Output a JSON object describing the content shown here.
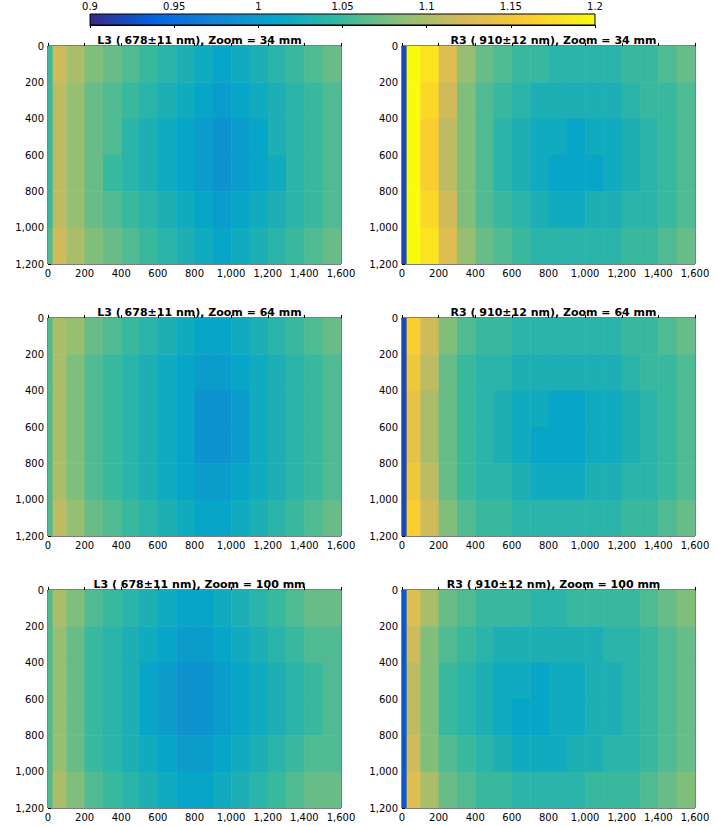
{
  "colorbar": {
    "range": [
      0.9,
      1.2
    ],
    "ticks": [
      0.9,
      0.95,
      1,
      1.05,
      1.1,
      1.15,
      1.2
    ]
  },
  "chart_data": [
    {
      "type": "heatmap",
      "title": "L3 ( 678±11 nm), Zoom = 34 mm",
      "xlim": [
        0,
        1600
      ],
      "xticks": [
        0,
        200,
        400,
        600,
        800,
        1000,
        1200,
        1400,
        1600
      ],
      "ylim": [
        0,
        1200
      ],
      "yticks": [
        0,
        200,
        400,
        600,
        800,
        1000,
        1200
      ],
      "x_edges": [
        0,
        25,
        100,
        200,
        300,
        400,
        500,
        600,
        700,
        800,
        900,
        1000,
        1100,
        1200,
        1300,
        1400,
        1500,
        1600
      ],
      "y_edges": [
        0,
        200,
        400,
        600,
        800,
        1000,
        1200
      ],
      "cells": [
        [
          1.05,
          1.12,
          1.1,
          1.08,
          1.07,
          1.06,
          1.05,
          1.04,
          1.03,
          1.02,
          1.01,
          1.02,
          1.03,
          1.04,
          1.05,
          1.06,
          1.07
        ],
        [
          1.05,
          1.11,
          1.09,
          1.07,
          1.06,
          1.05,
          1.04,
          1.03,
          1.02,
          1.01,
          1.0,
          1.01,
          1.02,
          1.03,
          1.04,
          1.05,
          1.06
        ],
        [
          1.05,
          1.11,
          1.09,
          1.07,
          1.06,
          1.04,
          1.03,
          1.02,
          1.01,
          1.0,
          0.99,
          1.0,
          1.01,
          1.03,
          1.04,
          1.05,
          1.06
        ],
        [
          1.05,
          1.11,
          1.09,
          1.07,
          1.05,
          1.04,
          1.03,
          1.02,
          1.01,
          1.0,
          0.99,
          1.0,
          1.01,
          1.02,
          1.04,
          1.05,
          1.06
        ],
        [
          1.05,
          1.11,
          1.09,
          1.07,
          1.06,
          1.05,
          1.04,
          1.03,
          1.02,
          1.01,
          1.0,
          1.01,
          1.02,
          1.03,
          1.04,
          1.05,
          1.06
        ],
        [
          1.06,
          1.12,
          1.1,
          1.08,
          1.07,
          1.06,
          1.05,
          1.04,
          1.03,
          1.02,
          1.01,
          1.02,
          1.03,
          1.04,
          1.05,
          1.06,
          1.07
        ]
      ]
    },
    {
      "type": "heatmap",
      "title": "R3 ( 910±12 nm), Zoom = 34 mm",
      "xlim": [
        0,
        1600
      ],
      "xticks": [
        0,
        200,
        400,
        600,
        800,
        1000,
        1200,
        1400,
        1600
      ],
      "ylim": [
        0,
        1200
      ],
      "yticks": [
        0,
        200,
        400,
        600,
        800,
        1000,
        1200
      ],
      "x_edges": [
        0,
        25,
        100,
        200,
        300,
        400,
        500,
        600,
        700,
        800,
        900,
        1000,
        1100,
        1200,
        1300,
        1400,
        1500,
        1600
      ],
      "y_edges": [
        0,
        200,
        400,
        600,
        800,
        1000,
        1200
      ],
      "cells": [
        [
          0.92,
          1.2,
          1.18,
          1.13,
          1.09,
          1.07,
          1.06,
          1.05,
          1.05,
          1.04,
          1.04,
          1.04,
          1.04,
          1.05,
          1.05,
          1.06,
          1.07
        ],
        [
          0.92,
          1.2,
          1.17,
          1.12,
          1.08,
          1.06,
          1.05,
          1.04,
          1.03,
          1.03,
          1.03,
          1.03,
          1.03,
          1.04,
          1.05,
          1.05,
          1.06
        ],
        [
          0.92,
          1.2,
          1.16,
          1.11,
          1.08,
          1.06,
          1.04,
          1.03,
          1.02,
          1.02,
          1.01,
          1.02,
          1.02,
          1.03,
          1.04,
          1.05,
          1.06
        ],
        [
          0.92,
          1.2,
          1.16,
          1.11,
          1.08,
          1.06,
          1.04,
          1.03,
          1.02,
          1.01,
          1.01,
          1.01,
          1.02,
          1.03,
          1.04,
          1.05,
          1.06
        ],
        [
          0.92,
          1.2,
          1.17,
          1.12,
          1.08,
          1.06,
          1.05,
          1.04,
          1.03,
          1.02,
          1.02,
          1.03,
          1.03,
          1.04,
          1.04,
          1.05,
          1.06
        ],
        [
          0.92,
          1.2,
          1.18,
          1.13,
          1.09,
          1.07,
          1.06,
          1.05,
          1.04,
          1.04,
          1.04,
          1.04,
          1.04,
          1.05,
          1.05,
          1.06,
          1.07
        ]
      ]
    },
    {
      "type": "heatmap",
      "title": "L3 ( 678±11 nm), Zoom = 64 mm",
      "xlim": [
        0,
        1600
      ],
      "xticks": [
        0,
        200,
        400,
        600,
        800,
        1000,
        1200,
        1400,
        1600
      ],
      "ylim": [
        0,
        1200
      ],
      "yticks": [
        0,
        200,
        400,
        600,
        800,
        1000,
        1200
      ],
      "x_edges": [
        0,
        25,
        100,
        200,
        300,
        400,
        500,
        600,
        700,
        800,
        900,
        1000,
        1100,
        1200,
        1300,
        1400,
        1500,
        1600
      ],
      "y_edges": [
        0,
        200,
        400,
        600,
        800,
        1000,
        1200
      ],
      "cells": [
        [
          1.06,
          1.1,
          1.09,
          1.07,
          1.06,
          1.05,
          1.04,
          1.03,
          1.02,
          1.01,
          1.01,
          1.02,
          1.03,
          1.04,
          1.05,
          1.06,
          1.07
        ],
        [
          1.06,
          1.1,
          1.08,
          1.06,
          1.05,
          1.04,
          1.03,
          1.02,
          1.01,
          1.0,
          1.0,
          1.01,
          1.02,
          1.03,
          1.04,
          1.05,
          1.06
        ],
        [
          1.06,
          1.1,
          1.08,
          1.06,
          1.05,
          1.04,
          1.03,
          1.02,
          1.01,
          0.99,
          0.99,
          1.0,
          1.02,
          1.03,
          1.04,
          1.05,
          1.06
        ],
        [
          1.06,
          1.1,
          1.08,
          1.06,
          1.05,
          1.04,
          1.03,
          1.02,
          1.01,
          0.99,
          0.99,
          1.0,
          1.02,
          1.03,
          1.04,
          1.05,
          1.06
        ],
        [
          1.06,
          1.1,
          1.08,
          1.06,
          1.05,
          1.04,
          1.03,
          1.02,
          1.01,
          1.0,
          1.0,
          1.01,
          1.02,
          1.03,
          1.04,
          1.05,
          1.06
        ],
        [
          1.06,
          1.11,
          1.09,
          1.07,
          1.06,
          1.05,
          1.04,
          1.03,
          1.02,
          1.01,
          1.01,
          1.02,
          1.03,
          1.04,
          1.05,
          1.06,
          1.07
        ]
      ]
    },
    {
      "type": "heatmap",
      "title": "R3 ( 910±12 nm), Zoom = 64 mm",
      "xlim": [
        0,
        1600
      ],
      "xticks": [
        0,
        200,
        400,
        600,
        800,
        1000,
        1200,
        1400,
        1600
      ],
      "ylim": [
        0,
        1200
      ],
      "yticks": [
        0,
        200,
        400,
        600,
        800,
        1000,
        1200
      ],
      "x_edges": [
        0,
        25,
        100,
        200,
        300,
        400,
        500,
        600,
        700,
        800,
        900,
        1000,
        1100,
        1200,
        1300,
        1400,
        1500,
        1600
      ],
      "y_edges": [
        0,
        200,
        400,
        600,
        800,
        1000,
        1200
      ],
      "cells": [
        [
          0.92,
          1.16,
          1.12,
          1.08,
          1.06,
          1.05,
          1.05,
          1.04,
          1.04,
          1.04,
          1.04,
          1.04,
          1.04,
          1.05,
          1.05,
          1.06,
          1.07
        ],
        [
          0.92,
          1.15,
          1.11,
          1.07,
          1.05,
          1.04,
          1.04,
          1.03,
          1.03,
          1.03,
          1.03,
          1.03,
          1.03,
          1.04,
          1.05,
          1.05,
          1.06
        ],
        [
          0.92,
          1.14,
          1.1,
          1.07,
          1.05,
          1.04,
          1.03,
          1.02,
          1.02,
          1.01,
          1.01,
          1.02,
          1.02,
          1.03,
          1.04,
          1.05,
          1.06
        ],
        [
          0.92,
          1.14,
          1.1,
          1.07,
          1.05,
          1.04,
          1.03,
          1.02,
          1.01,
          1.01,
          1.01,
          1.02,
          1.02,
          1.03,
          1.04,
          1.05,
          1.06
        ],
        [
          0.92,
          1.15,
          1.11,
          1.07,
          1.05,
          1.04,
          1.04,
          1.03,
          1.02,
          1.02,
          1.02,
          1.03,
          1.03,
          1.04,
          1.04,
          1.05,
          1.06
        ],
        [
          0.92,
          1.16,
          1.12,
          1.08,
          1.06,
          1.05,
          1.05,
          1.04,
          1.04,
          1.04,
          1.04,
          1.04,
          1.04,
          1.05,
          1.05,
          1.06,
          1.07
        ]
      ]
    },
    {
      "type": "heatmap",
      "title": "L3 ( 678±11 nm), Zoom = 100 mm",
      "xlim": [
        0,
        1600
      ],
      "xticks": [
        0,
        200,
        400,
        600,
        800,
        1000,
        1200,
        1400,
        1600
      ],
      "ylim": [
        0,
        1200
      ],
      "yticks": [
        0,
        200,
        400,
        600,
        800,
        1000,
        1200
      ],
      "x_edges": [
        0,
        25,
        100,
        200,
        300,
        400,
        500,
        600,
        700,
        800,
        900,
        1000,
        1100,
        1200,
        1300,
        1400,
        1500,
        1600
      ],
      "y_edges": [
        0,
        200,
        400,
        600,
        800,
        1000,
        1200
      ],
      "cells": [
        [
          1.06,
          1.1,
          1.08,
          1.06,
          1.05,
          1.04,
          1.03,
          1.02,
          1.01,
          1.01,
          1.02,
          1.03,
          1.04,
          1.05,
          1.06,
          1.07,
          1.07
        ],
        [
          1.06,
          1.09,
          1.07,
          1.05,
          1.04,
          1.03,
          1.02,
          1.01,
          1.0,
          1.0,
          1.01,
          1.02,
          1.03,
          1.04,
          1.05,
          1.06,
          1.06
        ],
        [
          1.06,
          1.09,
          1.07,
          1.05,
          1.04,
          1.03,
          1.01,
          1.0,
          0.99,
          0.99,
          1.0,
          1.01,
          1.02,
          1.03,
          1.04,
          1.05,
          1.06
        ],
        [
          1.06,
          1.09,
          1.07,
          1.05,
          1.04,
          1.03,
          1.01,
          1.0,
          0.99,
          0.99,
          1.0,
          1.01,
          1.02,
          1.03,
          1.04,
          1.05,
          1.06
        ],
        [
          1.06,
          1.09,
          1.07,
          1.05,
          1.04,
          1.03,
          1.02,
          1.01,
          1.0,
          1.0,
          1.01,
          1.02,
          1.03,
          1.04,
          1.05,
          1.06,
          1.06
        ],
        [
          1.06,
          1.1,
          1.08,
          1.06,
          1.05,
          1.04,
          1.03,
          1.02,
          1.01,
          1.01,
          1.02,
          1.03,
          1.04,
          1.05,
          1.06,
          1.07,
          1.07
        ]
      ]
    },
    {
      "type": "heatmap",
      "title": "R3 ( 910±12 nm), Zoom = 100 mm",
      "xlim": [
        0,
        1600
      ],
      "xticks": [
        0,
        200,
        400,
        600,
        800,
        1000,
        1200,
        1400,
        1600
      ],
      "ylim": [
        0,
        1200
      ],
      "yticks": [
        0,
        200,
        400,
        600,
        800,
        1000,
        1200
      ],
      "x_edges": [
        0,
        25,
        100,
        200,
        300,
        400,
        500,
        600,
        700,
        800,
        900,
        1000,
        1100,
        1200,
        1300,
        1400,
        1500,
        1600
      ],
      "y_edges": [
        0,
        200,
        400,
        600,
        800,
        1000,
        1200
      ],
      "cells": [
        [
          0.93,
          1.13,
          1.1,
          1.07,
          1.06,
          1.05,
          1.05,
          1.05,
          1.04,
          1.04,
          1.05,
          1.05,
          1.05,
          1.05,
          1.06,
          1.07,
          1.08
        ],
        [
          0.93,
          1.12,
          1.08,
          1.06,
          1.05,
          1.04,
          1.03,
          1.03,
          1.03,
          1.03,
          1.03,
          1.03,
          1.04,
          1.04,
          1.05,
          1.06,
          1.07
        ],
        [
          0.93,
          1.11,
          1.08,
          1.05,
          1.04,
          1.03,
          1.02,
          1.02,
          1.01,
          1.02,
          1.02,
          1.03,
          1.03,
          1.04,
          1.05,
          1.06,
          1.07
        ],
        [
          0.93,
          1.11,
          1.08,
          1.05,
          1.04,
          1.03,
          1.02,
          1.01,
          1.01,
          1.02,
          1.02,
          1.03,
          1.03,
          1.04,
          1.05,
          1.06,
          1.07
        ],
        [
          0.93,
          1.12,
          1.08,
          1.06,
          1.05,
          1.04,
          1.03,
          1.02,
          1.02,
          1.02,
          1.03,
          1.03,
          1.04,
          1.04,
          1.05,
          1.06,
          1.07
        ],
        [
          0.93,
          1.13,
          1.1,
          1.07,
          1.06,
          1.05,
          1.05,
          1.04,
          1.04,
          1.04,
          1.04,
          1.05,
          1.05,
          1.05,
          1.06,
          1.07,
          1.08
        ]
      ]
    }
  ]
}
